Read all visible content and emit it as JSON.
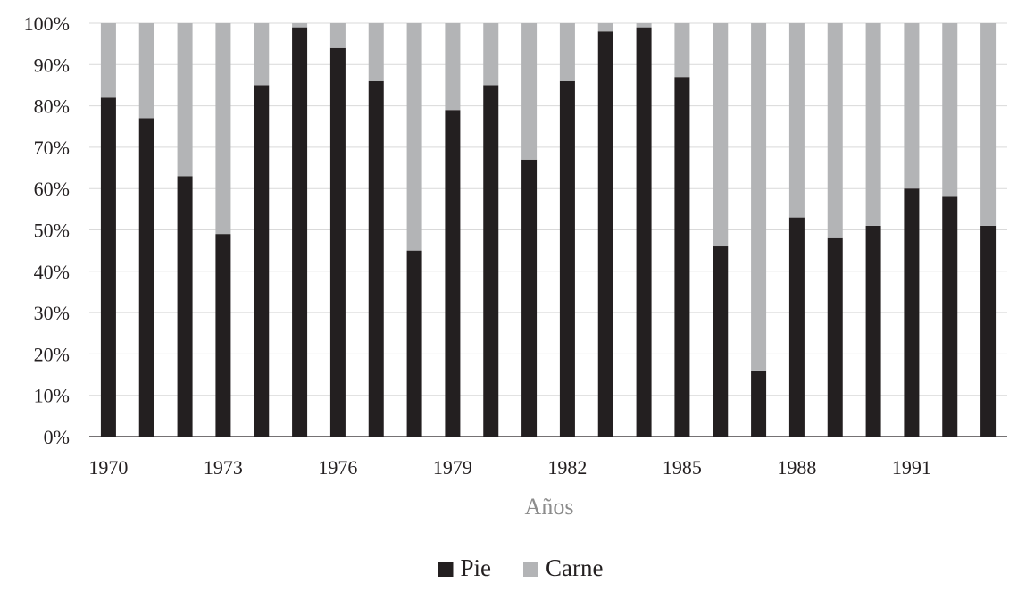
{
  "chart_data": {
    "type": "bar",
    "stacked": true,
    "percent": true,
    "categories": [
      "1970",
      "1971",
      "1972",
      "1973",
      "1974",
      "1975",
      "1976",
      "1977",
      "1978",
      "1979",
      "1980",
      "1981",
      "1982",
      "1983",
      "1984",
      "1985",
      "1986",
      "1987",
      "1988",
      "1989",
      "1990",
      "1991",
      "1992",
      "1993"
    ],
    "x_tick_labels": [
      "1970",
      "1973",
      "1976",
      "1979",
      "1982",
      "1985",
      "1988",
      "1991"
    ],
    "xlabel": "Años",
    "ylabel": "",
    "ylim": [
      0,
      100
    ],
    "y_tick_labels": [
      "0%",
      "10%",
      "20%",
      "30%",
      "40%",
      "50%",
      "60%",
      "70%",
      "80%",
      "90%",
      "100%"
    ],
    "grid": true,
    "legend_position": "bottom",
    "series": [
      {
        "name": "Pie",
        "color": "#231f20",
        "values": [
          82,
          77,
          63,
          49,
          85,
          99,
          94,
          86,
          45,
          79,
          85,
          67,
          86,
          98,
          99,
          87,
          46,
          16,
          53,
          48,
          51,
          60,
          58,
          51
        ]
      },
      {
        "name": "Carne",
        "color": "#b3b4b6",
        "values": [
          18,
          23,
          37,
          51,
          15,
          1,
          6,
          14,
          55,
          21,
          15,
          33,
          14,
          2,
          1,
          13,
          54,
          84,
          47,
          52,
          49,
          40,
          42,
          49
        ]
      }
    ]
  }
}
